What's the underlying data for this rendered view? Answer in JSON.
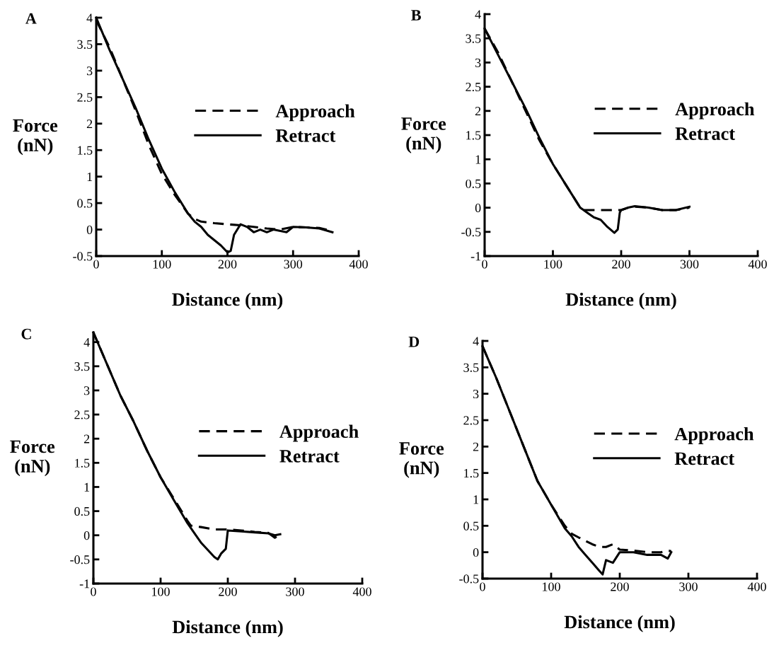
{
  "chart_data": [
    {
      "type": "line",
      "title": "A",
      "xlabel": "Distance (nm)",
      "ylabel": "Force\n(nN)",
      "xlim": [
        0,
        400
      ],
      "xticks": [
        0,
        100,
        200,
        300,
        400
      ],
      "ylim": [
        -0.5,
        4
      ],
      "yticks": [
        -0.5,
        0,
        0.5,
        1,
        1.5,
        2,
        2.5,
        3,
        3.5,
        4
      ],
      "legend": "right",
      "series": [
        {
          "name": "Approach",
          "color": "#000000",
          "line_style": "dashed",
          "x": [
            0,
            20,
            40,
            60,
            80,
            100,
            120,
            140,
            150,
            160,
            180,
            200,
            220,
            240,
            260,
            280,
            300,
            320,
            340,
            360
          ],
          "values": [
            3.95,
            3.45,
            2.85,
            2.25,
            1.6,
            1.05,
            0.65,
            0.3,
            0.2,
            0.15,
            0.12,
            0.1,
            0.08,
            0.05,
            0.02,
            0.0,
            0.05,
            0.04,
            0.03,
            -0.03
          ]
        },
        {
          "name": "Retract",
          "color": "#000000",
          "line_style": "solid",
          "x": [
            0,
            20,
            40,
            60,
            80,
            100,
            120,
            140,
            150,
            160,
            170,
            180,
            190,
            200,
            205,
            210,
            215,
            220,
            230,
            240,
            250,
            260,
            270,
            290,
            300,
            320,
            340,
            360
          ],
          "values": [
            4.0,
            3.4,
            2.85,
            2.3,
            1.7,
            1.15,
            0.7,
            0.3,
            0.15,
            0.05,
            -0.1,
            -0.2,
            -0.3,
            -0.43,
            -0.4,
            -0.1,
            0.0,
            0.1,
            0.05,
            -0.05,
            0.0,
            -0.05,
            0.0,
            -0.05,
            0.05,
            0.04,
            0.02,
            -0.05
          ]
        }
      ]
    },
    {
      "type": "line",
      "title": "B",
      "xlabel": "Distance (nm)",
      "ylabel": "Force\n(nN)",
      "xlim": [
        0,
        400
      ],
      "xticks": [
        0,
        100,
        200,
        300,
        400
      ],
      "ylim": [
        -1,
        4
      ],
      "yticks": [
        -1,
        -0.5,
        0,
        0.5,
        1,
        1.5,
        2,
        2.5,
        3,
        3.5,
        4
      ],
      "legend": "right",
      "series": [
        {
          "name": "Approach",
          "color": "#000000",
          "line_style": "dashed",
          "x": [
            0,
            20,
            40,
            60,
            80,
            100,
            120,
            140,
            145,
            160,
            180,
            200,
            210,
            220,
            240,
            260,
            280,
            300
          ],
          "values": [
            3.7,
            3.2,
            2.6,
            2.0,
            1.4,
            0.9,
            0.45,
            0.0,
            -0.05,
            -0.05,
            -0.05,
            -0.05,
            0.0,
            0.02,
            0.0,
            -0.05,
            -0.05,
            0.0
          ]
        },
        {
          "name": "Retract",
          "color": "#000000",
          "line_style": "solid",
          "x": [
            0,
            20,
            40,
            60,
            80,
            100,
            120,
            140,
            150,
            160,
            170,
            180,
            190,
            195,
            198,
            200,
            210,
            220,
            240,
            260,
            280,
            300
          ],
          "values": [
            3.7,
            3.15,
            2.6,
            2.05,
            1.45,
            0.9,
            0.45,
            0.0,
            -0.1,
            -0.2,
            -0.25,
            -0.4,
            -0.52,
            -0.45,
            -0.1,
            -0.05,
            0.0,
            0.03,
            0.0,
            -0.05,
            -0.05,
            0.02
          ]
        }
      ]
    },
    {
      "type": "line",
      "title": "C",
      "xlabel": "Distance (nm)",
      "ylabel": "Force\n(nN)",
      "xlim": [
        0,
        400
      ],
      "xticks": [
        0,
        100,
        200,
        300,
        400
      ],
      "ylim": [
        -1,
        4.2
      ],
      "yticks": [
        -1,
        -0.5,
        0,
        0.5,
        1,
        1.5,
        2,
        2.5,
        3,
        3.5,
        4
      ],
      "legend": "right",
      "series": [
        {
          "name": "Approach",
          "color": "#000000",
          "line_style": "dashed",
          "x": [
            0,
            20,
            40,
            60,
            80,
            100,
            120,
            140,
            145,
            160,
            180,
            200,
            220,
            240,
            260,
            270,
            278
          ],
          "values": [
            4.2,
            3.55,
            2.9,
            2.35,
            1.75,
            1.2,
            0.75,
            0.3,
            0.2,
            0.17,
            0.12,
            0.12,
            0.1,
            0.07,
            0.05,
            -0.05,
            0.02
          ]
        },
        {
          "name": "Retract",
          "color": "#000000",
          "line_style": "solid",
          "x": [
            0,
            20,
            40,
            60,
            80,
            100,
            120,
            140,
            150,
            160,
            170,
            180,
            185,
            190,
            197,
            200,
            220,
            240,
            260,
            270,
            278
          ],
          "values": [
            4.2,
            3.55,
            2.9,
            2.35,
            1.75,
            1.2,
            0.72,
            0.25,
            0.05,
            -0.15,
            -0.3,
            -0.45,
            -0.5,
            -0.38,
            -0.28,
            0.1,
            0.08,
            0.06,
            0.04,
            0.0,
            0.02
          ]
        }
      ]
    },
    {
      "type": "line",
      "title": "D",
      "xlabel": "Distance (nm)",
      "ylabel": "Force\n(nN)",
      "xlim": [
        0,
        400
      ],
      "xticks": [
        0,
        100,
        200,
        300,
        400
      ],
      "ylim": [
        -0.5,
        4
      ],
      "yticks": [
        -0.5,
        0,
        0.5,
        1,
        1.5,
        2,
        2.5,
        3,
        3.5,
        4
      ],
      "legend": "right",
      "series": [
        {
          "name": "Approach",
          "color": "#000000",
          "line_style": "dashed",
          "x": [
            0,
            20,
            40,
            60,
            80,
            100,
            120,
            130,
            140,
            160,
            170,
            180,
            190,
            200,
            220,
            240,
            260,
            270,
            275
          ],
          "values": [
            3.9,
            3.3,
            2.65,
            2.0,
            1.35,
            0.9,
            0.5,
            0.35,
            0.28,
            0.15,
            0.1,
            0.1,
            0.15,
            0.05,
            0.03,
            0.0,
            0.0,
            0.03,
            0.02
          ]
        },
        {
          "name": "Retract",
          "color": "#000000",
          "line_style": "solid",
          "x": [
            0,
            20,
            40,
            60,
            80,
            100,
            120,
            130,
            140,
            150,
            160,
            170,
            175,
            180,
            190,
            200,
            220,
            240,
            260,
            270,
            275
          ],
          "values": [
            3.9,
            3.3,
            2.65,
            2.0,
            1.35,
            0.9,
            0.45,
            0.3,
            0.1,
            -0.05,
            -0.2,
            -0.35,
            -0.42,
            -0.15,
            -0.2,
            0.0,
            0.0,
            -0.05,
            -0.05,
            -0.12,
            0.0
          ]
        }
      ]
    }
  ]
}
